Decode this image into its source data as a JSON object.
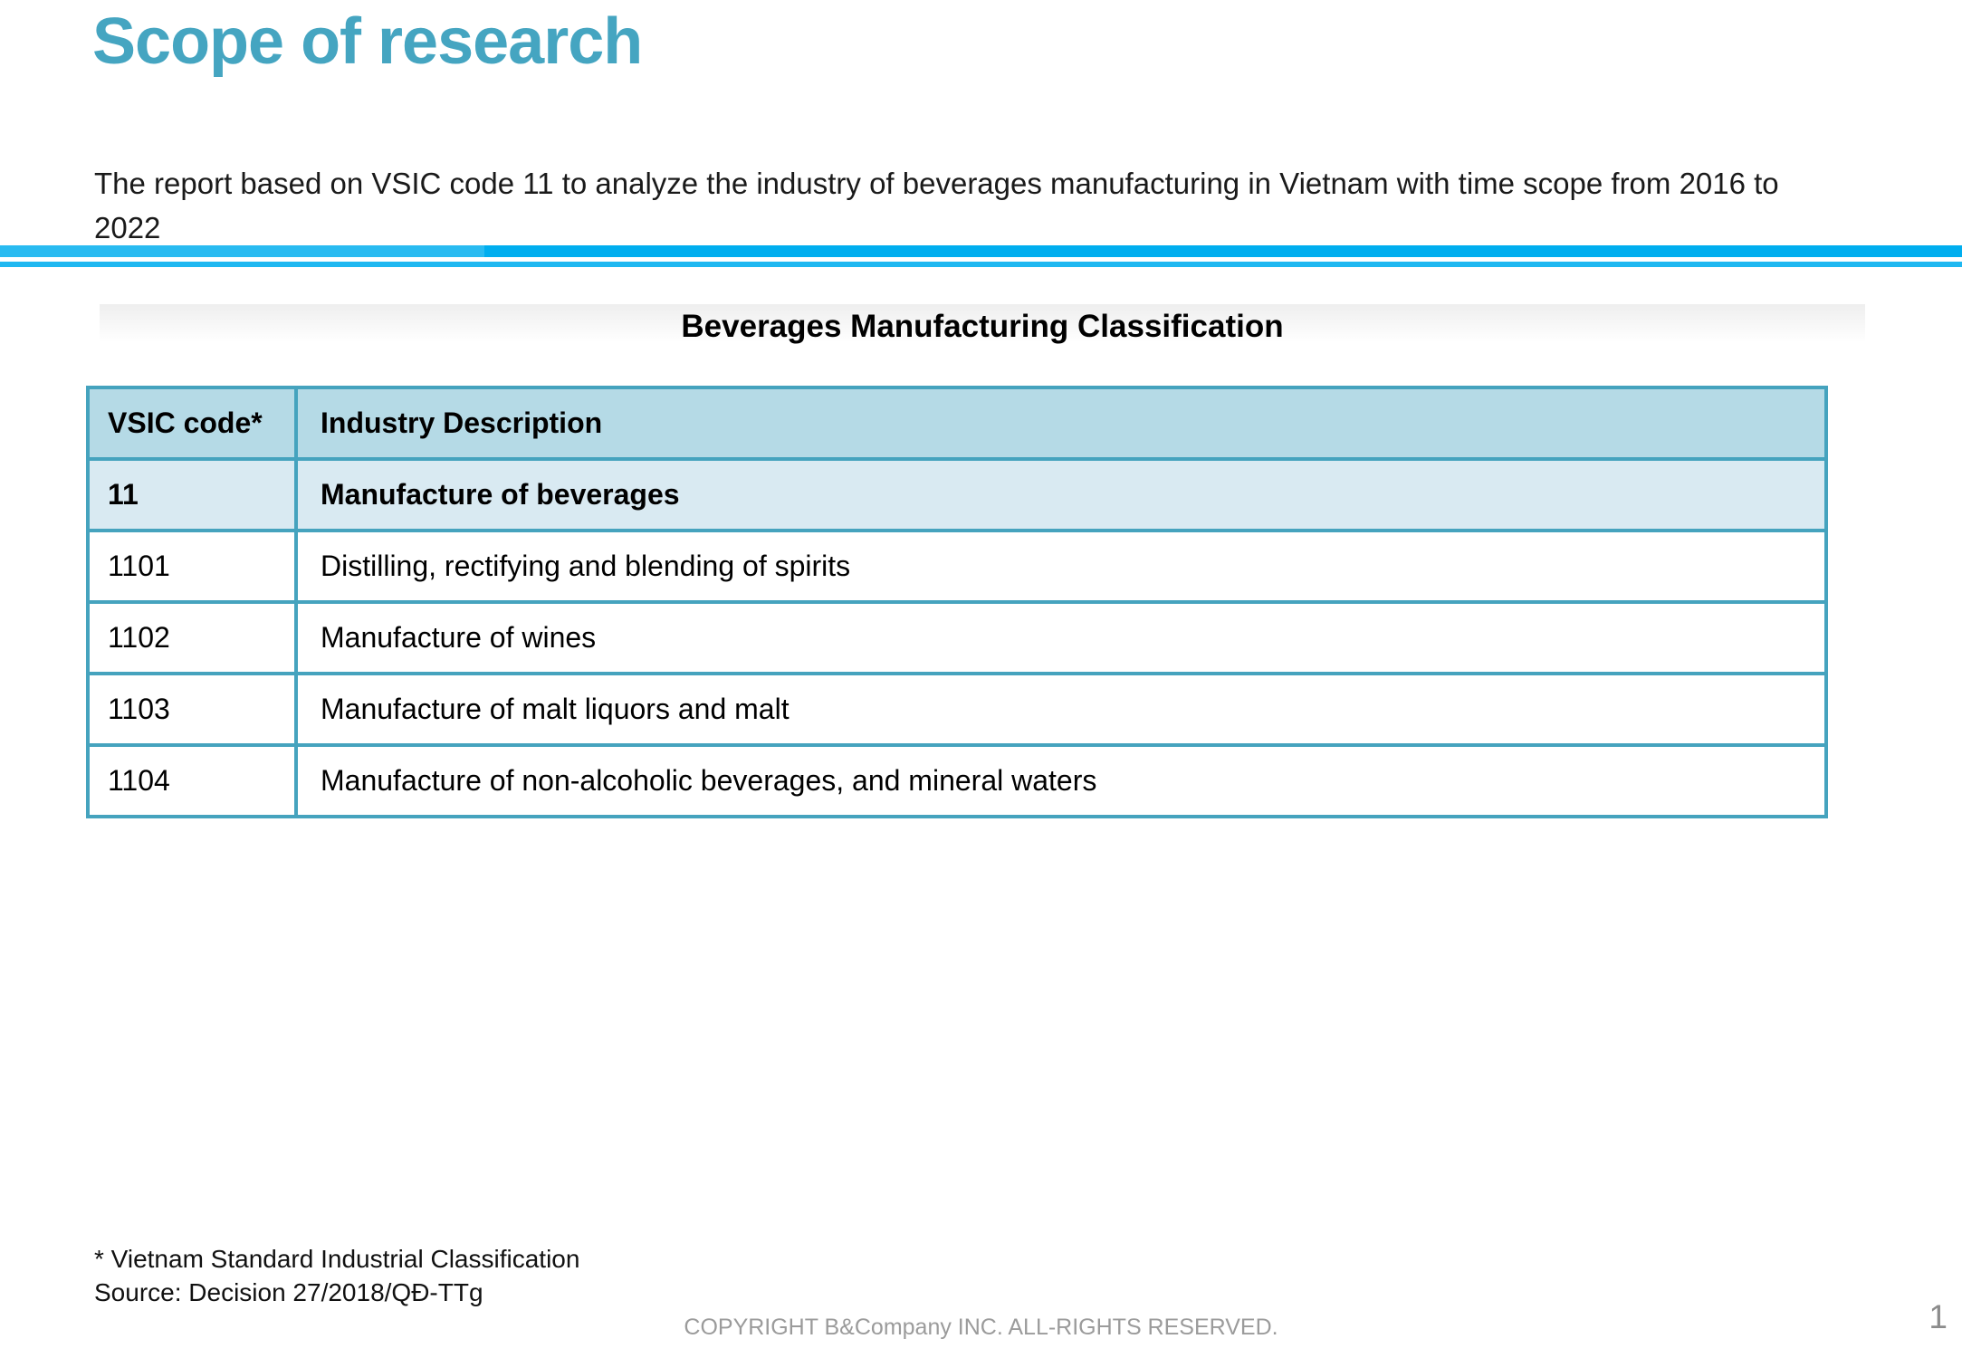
{
  "slide": {
    "title": "Scope of research",
    "intro": "The report based on VSIC code 11 to analyze the industry of beverages manufacturing in Vietnam with time scope from 2016 to 2022",
    "section_title": "Beverages Manufacturing Classification",
    "footnotes": {
      "asterisk": "* Vietnam Standard Industrial Classification",
      "source": "Source: Decision 27/2018/QĐ-TTg"
    },
    "footer": {
      "copyright": "COPYRIGHT B&Company INC. ALL-RIGHTS RESERVED.",
      "page_number": "1"
    }
  },
  "table": {
    "columns": [
      {
        "key": "code",
        "label": "VSIC code*"
      },
      {
        "key": "description",
        "label": "Industry Description"
      }
    ],
    "rows": [
      {
        "code": "11",
        "description": "Manufacture of beverages",
        "highlight": true
      },
      {
        "code": "1101",
        "description": "Distilling, rectifying and blending of spirits"
      },
      {
        "code": "1102",
        "description": "Manufacture of wines"
      },
      {
        "code": "1103",
        "description": "Manufacture of malt liquors and malt"
      },
      {
        "code": "1104",
        "description": "Manufacture of non-alcoholic beverages, and mineral waters"
      }
    ]
  },
  "colors": {
    "title_teal": "#45A5C1",
    "divider_blue": "#00AEEF",
    "table_border": "#45A3BE",
    "header_bg": "#B5DAE6",
    "highlight_row_bg": "#D9EAF2",
    "footer_gray": "#9B9B9B"
  }
}
